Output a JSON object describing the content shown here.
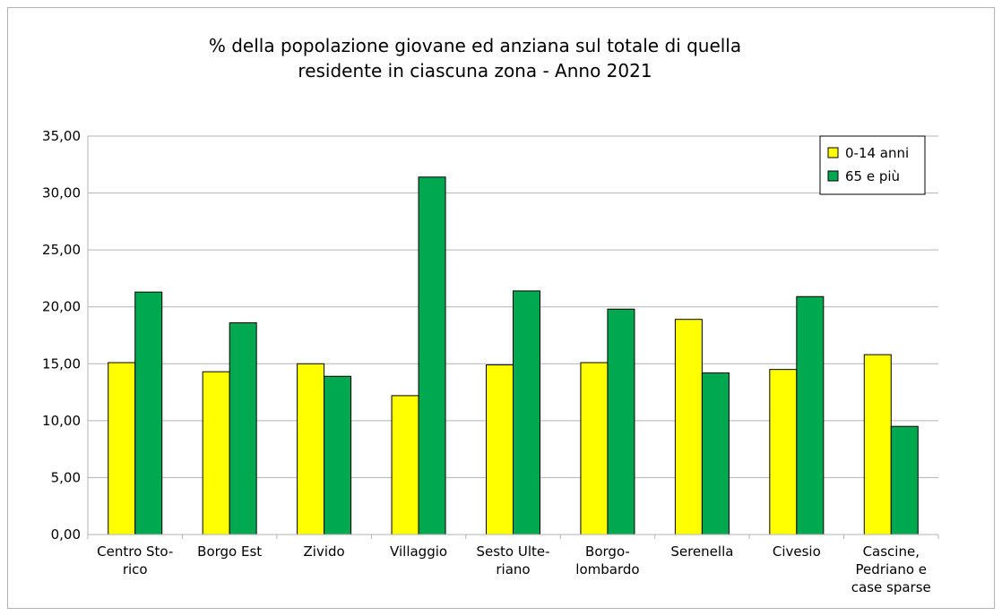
{
  "chart_data": {
    "type": "bar",
    "title": [
      "% della popolazione giovane ed anziana sul totale di quella",
      "residente in ciascuna zona  - Anno 2021"
    ],
    "categories": [
      [
        "Centro Sto-",
        "rico"
      ],
      [
        "Borgo Est"
      ],
      [
        "Zivido"
      ],
      [
        "Villaggio"
      ],
      [
        "Sesto Ulte-",
        "riano"
      ],
      [
        "Borgo-",
        "lombardo"
      ],
      [
        "Serenella"
      ],
      [
        "Civesio"
      ],
      [
        "Cascine,",
        "Pedriano e",
        "case sparse"
      ]
    ],
    "series": [
      {
        "name": "0-14 anni",
        "color": "#ffff00",
        "values": [
          15.1,
          14.3,
          15.0,
          12.2,
          14.9,
          15.1,
          18.9,
          14.5,
          15.8
        ]
      },
      {
        "name": "65 e più",
        "color": "#00a84f",
        "values": [
          21.3,
          18.6,
          13.9,
          31.4,
          21.4,
          19.8,
          14.2,
          20.9,
          9.5
        ]
      }
    ],
    "ylim": [
      0,
      35
    ],
    "yticks": [
      "0,00",
      "5,00",
      "10,00",
      "15,00",
      "20,00",
      "25,00",
      "30,00",
      "35,00"
    ],
    "ytick_step": 5,
    "grid": true,
    "legend": "top-right"
  }
}
